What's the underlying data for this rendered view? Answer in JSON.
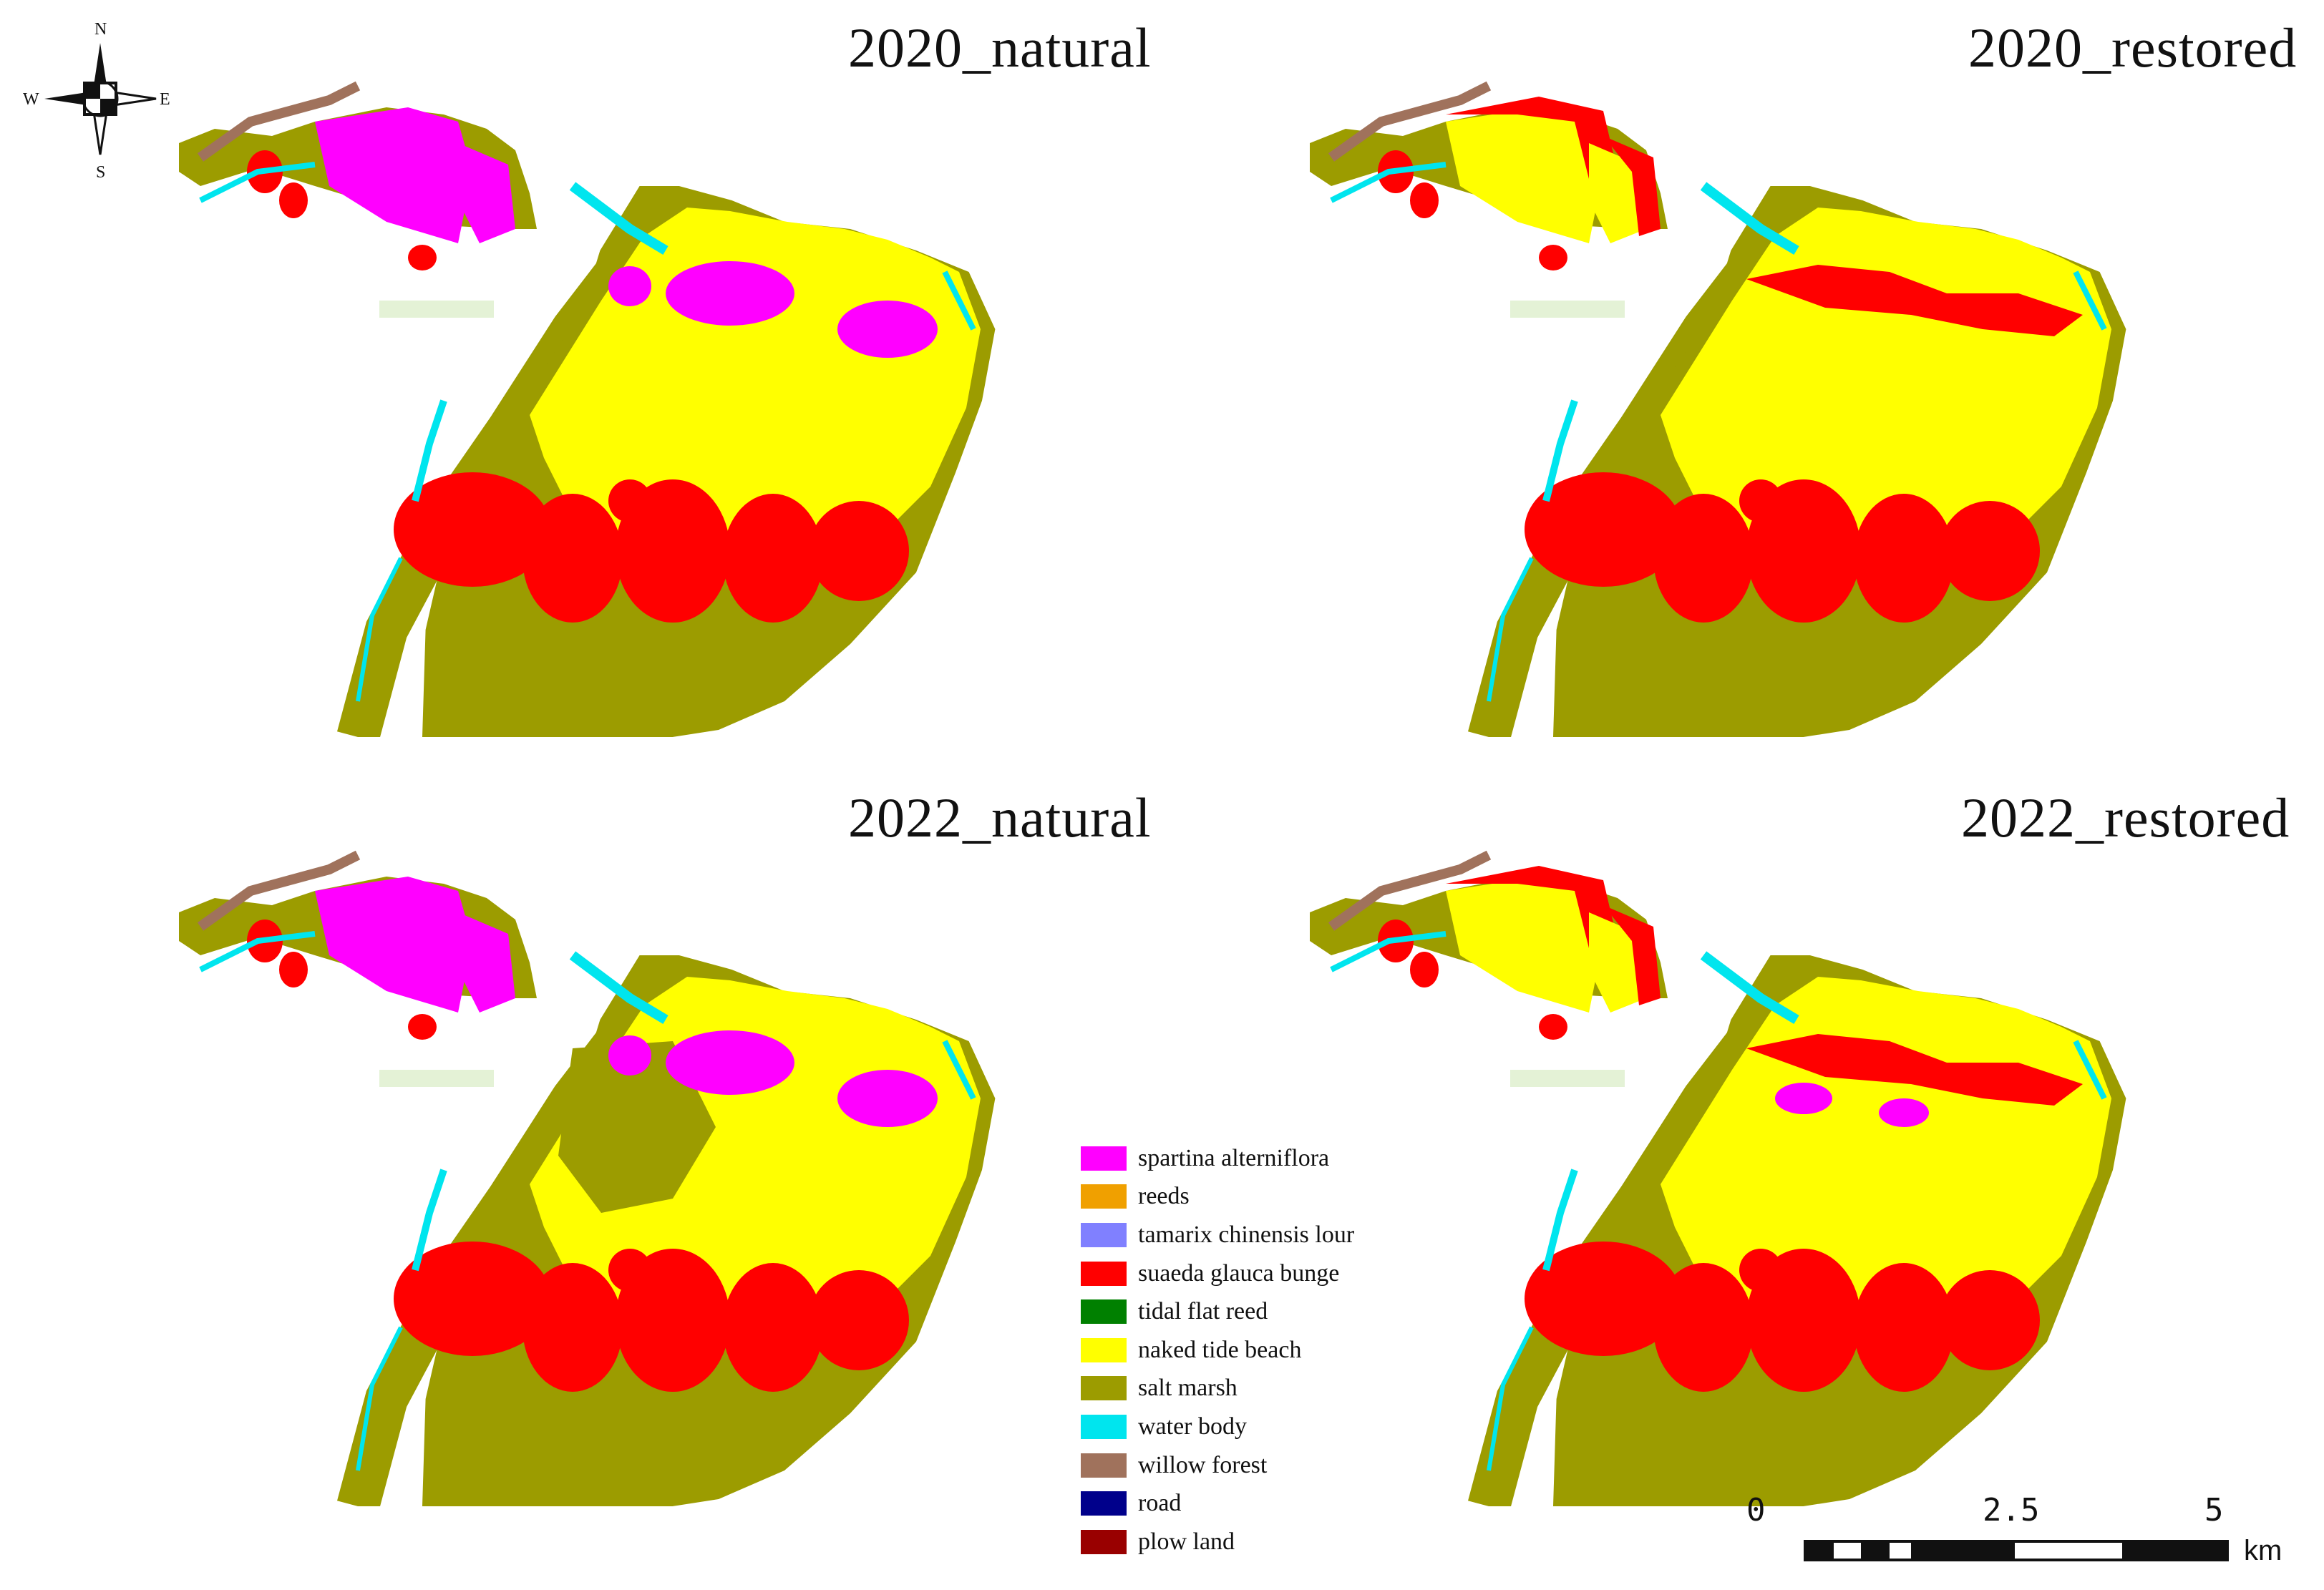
{
  "titles": {
    "p2020_natural": "2020_natural",
    "p2020_restored": "2020_restored",
    "p2022_natural": "2022_natural",
    "p2022_restored": "2022_restored"
  },
  "compass": {
    "n": "N",
    "s": "S",
    "e": "E",
    "w": "W"
  },
  "colors": {
    "spartina": "#ff00ff",
    "reeds": "#f0a000",
    "tamarix": "#8080ff",
    "suaeda": "#ff0000",
    "tidal_reed": "#008000",
    "naked_beach": "#ffff00",
    "salt_marsh": "#9c9c00",
    "water": "#00e5ee",
    "willow": "#a0725c",
    "road": "#00008b",
    "plow": "#990000",
    "bare": "#e4f2d6"
  },
  "legend": [
    {
      "label": "spartina alterniflora",
      "color": "#ff00ff"
    },
    {
      "label": "reeds",
      "color": "#f0a000"
    },
    {
      "label": "tamarix chinensis lour",
      "color": "#8080ff"
    },
    {
      "label": "suaeda glauca bunge",
      "color": "#ff0000"
    },
    {
      "label": "tidal flat reed",
      "color": "#008000"
    },
    {
      "label": "naked tide beach",
      "color": "#ffff00"
    },
    {
      "label": "salt marsh",
      "color": "#9c9c00"
    },
    {
      "label": "water body",
      "color": "#00e5ee"
    },
    {
      "label": "willow forest",
      "color": "#a0725c"
    },
    {
      "label": "road",
      "color": "#00008b"
    },
    {
      "label": "plow land",
      "color": "#990000"
    }
  ],
  "scale": {
    "ticks": [
      "0",
      "2.5",
      "5"
    ],
    "unit": "km"
  }
}
